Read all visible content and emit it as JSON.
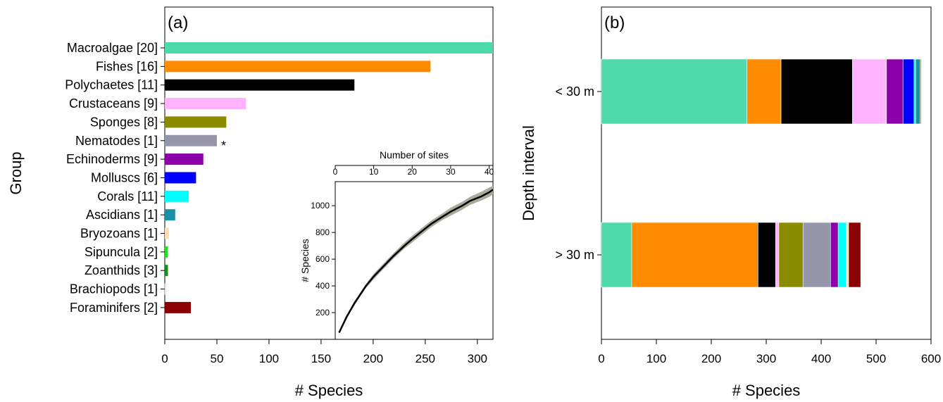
{
  "panel_a": {
    "label": "(a)",
    "ylabel": "Group",
    "xlabel": "# Species"
  },
  "panel_b": {
    "label": "(b)",
    "ylabel": "Depth interval",
    "xlabel": "# Species"
  },
  "inset": {
    "top_label": "Number of sites",
    "ylabel": "# Species"
  },
  "colors": {
    "Macroalgae": "#4dd9aa",
    "Fishes": "#ff8c00",
    "Polychaetes": "#000000",
    "Crustaceans": "#ffb3ff",
    "Sponges": "#8b8b00",
    "Nematodes": "#9696aa",
    "Echinoderms": "#8b00a8",
    "Molluscs": "#0000ff",
    "Corals": "#00ffff",
    "Ascidians": "#1a8fa6",
    "Bryozoans": "#ffdeb3",
    "Sipuncula": "#22dd22",
    "Zoanthids": "#1a8c1a",
    "Brachiopods": "#ffffff",
    "Foraminifers": "#8b0000",
    "inset_band": "#a8ac9a"
  },
  "chart_data": [
    {
      "type": "bar",
      "orientation": "horizontal",
      "categories": [
        "Macroalgae [20]",
        "Fishes [16]",
        "Polychaetes [11]",
        "Crustaceans [9]",
        "Sponges [8]",
        "Nematodes [1]",
        "Echinoderms [9]",
        "Molluscs [6]",
        "Corals [11]",
        "Ascidians [1]",
        "Bryozoans [1]",
        "Sipuncula [2]",
        "Zoanthids [3]",
        "Brachiopods [1]",
        "Foraminifers [2]"
      ],
      "groups": [
        "Macroalgae",
        "Fishes",
        "Polychaetes",
        "Crustaceans",
        "Sponges",
        "Nematodes",
        "Echinoderms",
        "Molluscs",
        "Corals",
        "Ascidians",
        "Bryozoans",
        "Sipuncula",
        "Zoanthids",
        "Brachiopods",
        "Foraminifers"
      ],
      "values": [
        315,
        255,
        182,
        78,
        59,
        50,
        37,
        30,
        23,
        10,
        4,
        3,
        3,
        1,
        25
      ],
      "annotations": [
        {
          "category": "Nematodes [1]",
          "text": "*"
        }
      ],
      "xlabel": "# Species",
      "ylabel": "Group",
      "xlim": [
        0,
        315
      ],
      "xticks": [
        "0",
        "50",
        "100",
        "150",
        "200",
        "250",
        "300"
      ]
    },
    {
      "type": "line",
      "inset": true,
      "x": [
        1,
        3,
        5,
        8,
        10,
        13,
        15,
        18,
        20,
        23,
        25,
        28,
        30,
        33,
        35,
        38,
        40,
        41
      ],
      "y": [
        50,
        170,
        270,
        400,
        470,
        560,
        620,
        700,
        750,
        820,
        865,
        920,
        955,
        1000,
        1035,
        1070,
        1100,
        1120
      ],
      "y_upper": [
        55,
        180,
        285,
        415,
        490,
        580,
        640,
        725,
        775,
        845,
        890,
        945,
        985,
        1030,
        1065,
        1105,
        1135,
        1150
      ],
      "y_lower": [
        45,
        160,
        255,
        385,
        450,
        540,
        600,
        680,
        725,
        795,
        840,
        895,
        925,
        970,
        1005,
        1040,
        1065,
        1085
      ],
      "top_axis_label": "Number of sites",
      "xticks": [
        "0",
        "10",
        "20",
        "30",
        "40"
      ],
      "ylabel": "# Species",
      "yticks": [
        "200",
        "400",
        "600",
        "800",
        "1000"
      ],
      "xlim": [
        0,
        41
      ],
      "ylim": [
        0,
        1180
      ]
    },
    {
      "type": "bar",
      "orientation": "horizontal",
      "stacked": true,
      "categories": [
        "< 30 m",
        "> 30 m"
      ],
      "series": [
        {
          "name": "Macroalgae",
          "values": [
            265,
            55
          ]
        },
        {
          "name": "Fishes",
          "values": [
            62,
            230
          ]
        },
        {
          "name": "Polychaetes",
          "values": [
            130,
            32
          ]
        },
        {
          "name": "Crustaceans",
          "values": [
            62,
            6
          ]
        },
        {
          "name": "Sponges",
          "values": [
            0,
            44
          ]
        },
        {
          "name": "Nematodes",
          "values": [
            0,
            50
          ]
        },
        {
          "name": "Echinoderms",
          "values": [
            30,
            14
          ]
        },
        {
          "name": "Molluscs",
          "values": [
            20,
            0
          ]
        },
        {
          "name": "Corals",
          "values": [
            3,
            15
          ]
        },
        {
          "name": "Ascidians",
          "values": [
            8,
            0
          ]
        },
        {
          "name": "Bryozoans",
          "values": [
            0,
            4
          ]
        },
        {
          "name": "Sipuncula",
          "values": [
            0,
            0
          ]
        },
        {
          "name": "Zoanthids",
          "values": [
            2,
            0
          ]
        },
        {
          "name": "Brachiopods",
          "values": [
            2,
            0
          ]
        },
        {
          "name": "Foraminifers",
          "values": [
            0,
            22
          ]
        }
      ],
      "xlabel": "# Species",
      "ylabel": "Depth interval",
      "xlim": [
        0,
        600
      ],
      "xticks": [
        "0",
        "100",
        "200",
        "300",
        "400",
        "500",
        "600"
      ]
    }
  ]
}
